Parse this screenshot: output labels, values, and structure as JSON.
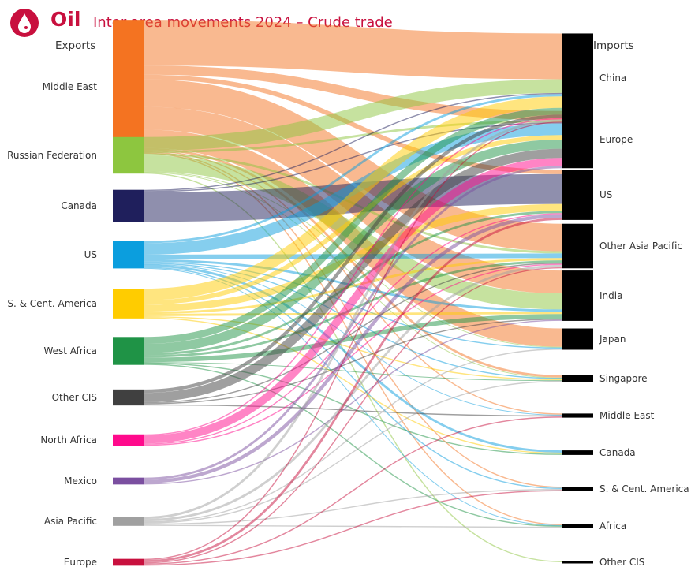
{
  "header": {
    "brand": "Oil",
    "title": "Inter-area movements 2024 – Crude trade",
    "logo_icon": "oil-drop-icon",
    "exports_label": "Exports",
    "imports_label": "Imports"
  },
  "chart_data": {
    "type": "sankey",
    "title": "Inter-area movements 2024 – Crude trade",
    "exporters": [
      {
        "name": "Middle East",
        "color": "#f47321"
      },
      {
        "name": "Russian Federation",
        "color": "#8dc63f"
      },
      {
        "name": "Canada",
        "color": "#1f1f5c"
      },
      {
        "name": "US",
        "color": "#0b9ede"
      },
      {
        "name": "S. & Cent. America",
        "color": "#ffcc00"
      },
      {
        "name": "West Africa",
        "color": "#1f9346"
      },
      {
        "name": "Other CIS",
        "color": "#404040"
      },
      {
        "name": "North Africa",
        "color": "#ff0a8c"
      },
      {
        "name": "Mexico",
        "color": "#7b4fa0"
      },
      {
        "name": "Asia Pacific",
        "color": "#a0a0a0"
      },
      {
        "name": "Europe",
        "color": "#c8103e"
      }
    ],
    "importers": [
      "China",
      "Europe",
      "US",
      "Other Asia Pacific",
      "India",
      "Japan",
      "Singapore",
      "Middle East",
      "Canada",
      "S. & Cent. America",
      "Africa",
      "Other CIS"
    ],
    "importer_color": "#000000",
    "flows": [
      [
        20,
        4,
        2,
        12,
        10,
        8,
        1,
        0.5,
        0,
        0.5,
        0.5,
        0
      ],
      [
        6,
        1,
        0,
        1,
        7,
        0.3,
        0.2,
        0,
        0,
        0,
        0,
        0.5
      ],
      [
        0.5,
        0.5,
        13,
        0,
        0,
        0,
        0,
        0,
        0,
        0,
        0,
        0
      ],
      [
        1,
        5,
        0,
        2,
        1,
        0.5,
        0.5,
        0.3,
        1,
        0.5,
        0.2,
        0
      ],
      [
        5,
        2,
        3,
        1,
        1,
        0,
        0.5,
        0,
        0.5,
        0,
        0,
        0
      ],
      [
        3,
        4,
        1,
        1,
        2,
        0,
        0.2,
        0,
        0.5,
        0,
        0.5,
        0
      ],
      [
        1.5,
        4,
        0,
        0.5,
        0.5,
        0,
        0,
        0.5,
        0,
        0,
        0,
        0
      ],
      [
        0.5,
        3.5,
        0.5,
        0.5,
        0,
        0,
        0,
        0,
        0,
        0,
        0,
        0
      ],
      [
        0,
        1,
        1.5,
        0,
        0.5,
        0,
        0,
        0,
        0,
        0,
        0,
        0
      ],
      [
        1,
        0,
        0,
        1,
        0,
        0.5,
        0.5,
        0,
        0,
        0.5,
        0.5,
        0
      ],
      [
        0.5,
        0,
        1,
        0.5,
        0,
        0,
        0,
        0.5,
        0,
        0.5,
        0,
        0
      ]
    ]
  }
}
